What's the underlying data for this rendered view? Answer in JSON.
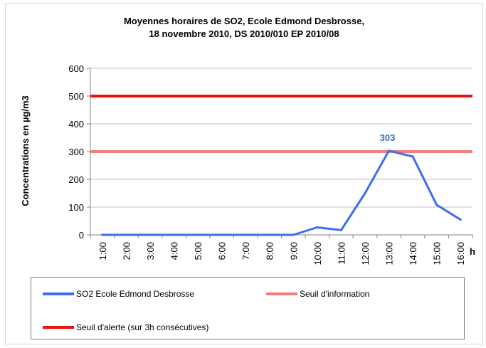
{
  "chart_data": {
    "type": "line",
    "title_lines": [
      "Moyennes horaires de SO2,  Ecole Edmond Desbrosse,",
      "18 novembre 2010, DS 2010/010 EP 2010/08"
    ],
    "ylabel": "Concentrations en µg/m3",
    "xlabel": "h",
    "ylim": [
      0,
      600
    ],
    "yticks": [
      0,
      100,
      200,
      300,
      400,
      500,
      600
    ],
    "grid": true,
    "legend_position": "bottom",
    "x": [
      "1:00",
      "2:00",
      "3:00",
      "4:00",
      "5:00",
      "6:00",
      "7:00",
      "8:00",
      "9:00",
      "10:00",
      "11:00",
      "12:00",
      "13:00",
      "14:00",
      "15:00",
      "16:00"
    ],
    "series": [
      {
        "name": "SO2 Ecole Edmond Desbrosse",
        "color": "#3b6ff0",
        "values": [
          0,
          0,
          0,
          0,
          0,
          0,
          0,
          0,
          0,
          27,
          17,
          150,
          303,
          282,
          108,
          55
        ]
      }
    ],
    "thresholds": [
      {
        "name": "Seuil d'information",
        "value": 300,
        "color": "#f08080"
      },
      {
        "name": "Seuil d'alerte (sur 3h consécutives)",
        "value": 500,
        "color": "#e81414"
      }
    ],
    "annotations": [
      {
        "x": "13:00",
        "text": "303",
        "color": "#2e75b6"
      }
    ]
  }
}
